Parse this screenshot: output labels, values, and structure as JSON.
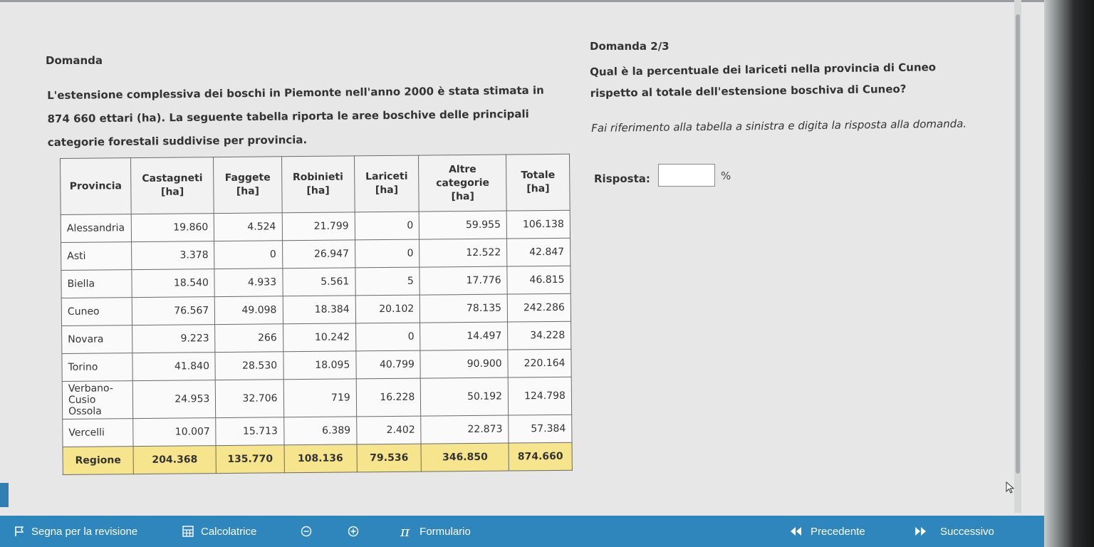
{
  "left": {
    "heading": "Domanda",
    "intro": "L'estensione complessiva dei boschi in Piemonte nell'anno 2000 è stata stimata in 874 660 ettari (ha). La seguente tabella riporta le aree boschive delle principali categorie forestali suddivise per provincia."
  },
  "table": {
    "headers": [
      "Provincia",
      "Castagneti [ha]",
      "Faggete [ha]",
      "Robinieti [ha]",
      "Lariceti [ha]",
      "Altre categorie [ha]",
      "Totale [ha]"
    ],
    "rows": [
      [
        "Alessandria",
        "19.860",
        "4.524",
        "21.799",
        "0",
        "59.955",
        "106.138"
      ],
      [
        "Asti",
        "3.378",
        "0",
        "26.947",
        "0",
        "12.522",
        "42.847"
      ],
      [
        "Biella",
        "18.540",
        "4.933",
        "5.561",
        "5",
        "17.776",
        "46.815"
      ],
      [
        "Cuneo",
        "76.567",
        "49.098",
        "18.384",
        "20.102",
        "78.135",
        "242.286"
      ],
      [
        "Novara",
        "9.223",
        "266",
        "10.242",
        "0",
        "14.497",
        "34.228"
      ],
      [
        "Torino",
        "41.840",
        "28.530",
        "18.095",
        "40.799",
        "90.900",
        "220.164"
      ],
      [
        "Verbano-Cusio Ossola",
        "24.953",
        "32.706",
        "719",
        "16.228",
        "50.192",
        "124.798"
      ],
      [
        "Vercelli",
        "10.007",
        "15.713",
        "6.389",
        "2.402",
        "22.873",
        "57.384"
      ]
    ],
    "totals": [
      "Regione",
      "204.368",
      "135.770",
      "108.136",
      "79.536",
      "346.850",
      "874.660"
    ]
  },
  "question": {
    "counter": "Domanda 2/3",
    "text": "Qual è la percentuale dei lariceti nella provincia di Cuneo rispetto al totale dell'estensione boschiva di Cuneo?",
    "instruction": "Fai riferimento alla tabella a sinistra e digita la risposta alla domanda.",
    "answer_label": "Risposta:",
    "answer_value": "",
    "unit": "%"
  },
  "footer": {
    "flag_label": "Segna per la revisione",
    "calculator_label": "Calcolatrice",
    "formulas_label": "Formulario",
    "prev_label": "Precedente",
    "next_label": "Successivo"
  },
  "colors": {
    "footer_bg": "#2f86bd",
    "totals_row_bg": "#f6e58c"
  }
}
